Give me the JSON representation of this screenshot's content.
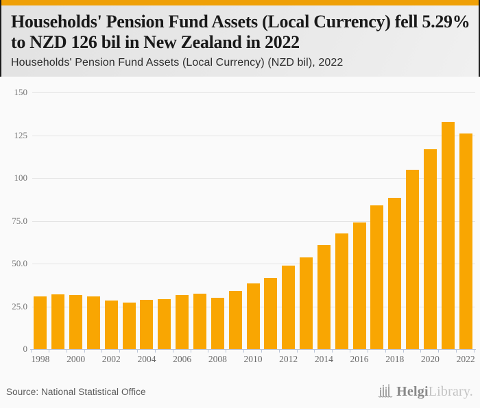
{
  "header": {
    "title": "Households' Pension Fund Assets (Local Currency) fell 5.29% to NZD 126 bil in New Zealand in 2022",
    "subtitle": "Households' Pension Fund Assets (Local Currency) (NZD bil), 2022"
  },
  "footer": {
    "source": "Source: National Statistical Office",
    "logo_primary": "Helgi",
    "logo_secondary": "Library."
  },
  "colors": {
    "top_band": "#efa007",
    "bar": "#f9a602",
    "axis": "#b9c4d7",
    "grid": "#e4e4e4",
    "logo_gray": "#9a9a9a"
  },
  "chart_data": {
    "type": "bar",
    "title": "Households' Pension Fund Assets (Local Currency) fell 5.29% to NZD 126 bil in New Zealand in 2022",
    "subtitle": "Households' Pension Fund Assets (Local Currency) (NZD bil), 2022",
    "xlabel": "",
    "ylabel": "",
    "ylim": [
      0,
      150
    ],
    "grid": true,
    "legend": "none",
    "categories": [
      1998,
      1999,
      2000,
      2001,
      2002,
      2003,
      2004,
      2005,
      2006,
      2007,
      2008,
      2009,
      2010,
      2011,
      2012,
      2013,
      2014,
      2015,
      2016,
      2017,
      2018,
      2019,
      2020,
      2021,
      2022
    ],
    "values": [
      30.7,
      32.2,
      31.6,
      30.9,
      28.6,
      27.1,
      28.8,
      29.4,
      31.5,
      32.3,
      30.0,
      34.0,
      38.5,
      41.8,
      49.0,
      53.7,
      60.9,
      67.8,
      74.0,
      84.1,
      88.5,
      105.0,
      117.0,
      133.0,
      126.0
    ],
    "yticks": [
      {
        "label": "150",
        "v": 150
      },
      {
        "label": "125",
        "v": 125
      },
      {
        "label": "100",
        "v": 100
      },
      {
        "label": "75.0",
        "v": 75
      },
      {
        "label": "50.0",
        "v": 50
      },
      {
        "label": "25.0",
        "v": 25
      },
      {
        "label": "0",
        "v": 0
      }
    ],
    "xtick_label_every": 2
  }
}
